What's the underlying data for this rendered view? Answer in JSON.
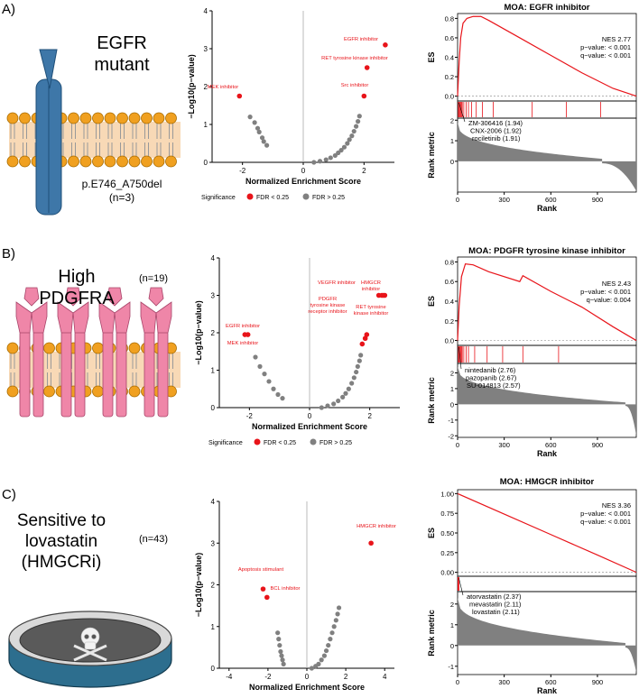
{
  "panels": [
    {
      "label": "A)",
      "caption_lines": [
        "EGFR",
        "mutant"
      ],
      "variant_line1": "p.E746_A750del",
      "variant_line2": "(n=3)",
      "n_label": ""
    },
    {
      "label": "B)",
      "caption_lines": [
        "High",
        "PDGFRA"
      ],
      "variant_line1": "",
      "variant_line2": "",
      "n_label": "(n=19)"
    },
    {
      "label": "C)",
      "caption_lines": [
        "Sensitive to",
        "lovastatin",
        "(HMGCRi)"
      ],
      "variant_line1": "",
      "variant_line2": "",
      "n_label": "(n=43)"
    }
  ],
  "volcano_common": {
    "xlabel": "Normalized Enrichment Score",
    "ylabel": "−Log10(p−value)",
    "legend_title": "Significance",
    "legend_sig": "FDR < 0.25",
    "legend_nonsig": "FDR > 0.25",
    "colors": {
      "sig": "#e8141a",
      "nonsig": "#808080"
    }
  },
  "gsea_common": {
    "es_label": "ES",
    "rank_metric_label": "Rank metric",
    "rank_label": "Rank",
    "colors": {
      "curve": "#e8141a",
      "bar": "#808080"
    }
  },
  "chart_data": [
    {
      "type": "scatter",
      "name": "volcano-A",
      "xlabel": "Normalized Enrichment Score",
      "ylabel": "−Log10(p−value)",
      "xlim": [
        -3,
        3
      ],
      "ylim": [
        0,
        4
      ],
      "xticks": [
        -2,
        0,
        2
      ],
      "yticks": [
        0,
        1,
        2,
        3,
        4
      ],
      "significant": [
        {
          "x": 2.7,
          "y": 3.1,
          "label": "EGFR inhibitor"
        },
        {
          "x": 2.1,
          "y": 2.5,
          "label": "RET tyrosine kinase inhibitor"
        },
        {
          "x": 2.0,
          "y": 1.75,
          "label": "Src inhibitor"
        },
        {
          "x": -2.1,
          "y": 1.75,
          "label": "MEK inhibitor"
        }
      ],
      "nonsignificant": [
        {
          "x": -1.75,
          "y": 1.2
        },
        {
          "x": -1.6,
          "y": 1.05
        },
        {
          "x": -1.5,
          "y": 0.9
        },
        {
          "x": -1.45,
          "y": 0.8
        },
        {
          "x": -1.35,
          "y": 0.65
        },
        {
          "x": -1.3,
          "y": 0.55
        },
        {
          "x": -1.2,
          "y": 0.45
        },
        {
          "x": 0.35,
          "y": 0.0
        },
        {
          "x": 0.55,
          "y": 0.03
        },
        {
          "x": 0.75,
          "y": 0.07
        },
        {
          "x": 0.9,
          "y": 0.12
        },
        {
          "x": 1.05,
          "y": 0.18
        },
        {
          "x": 1.15,
          "y": 0.25
        },
        {
          "x": 1.25,
          "y": 0.32
        },
        {
          "x": 1.35,
          "y": 0.4
        },
        {
          "x": 1.45,
          "y": 0.5
        },
        {
          "x": 1.52,
          "y": 0.6
        },
        {
          "x": 1.6,
          "y": 0.7
        },
        {
          "x": 1.67,
          "y": 0.82
        },
        {
          "x": 1.74,
          "y": 0.95
        },
        {
          "x": 1.8,
          "y": 1.08
        },
        {
          "x": 1.85,
          "y": 1.22
        }
      ]
    },
    {
      "type": "line",
      "name": "gsea-A",
      "title": "MOA: EGFR inhibitor",
      "nes": "NES 2.77",
      "pvalue": "p−value: < 0.001",
      "qvalue": "q−value: < 0.001",
      "es_yticks": [
        "0.0",
        "0.2",
        "0.4",
        "0.6",
        "0.8"
      ],
      "es_ylim": [
        -0.05,
        0.85
      ],
      "xlim": [
        0,
        1150
      ],
      "xticks": [
        0,
        300,
        600,
        900
      ],
      "rank_yticks": [
        0,
        1,
        2
      ],
      "rank_ylim": [
        -1.5,
        2.1
      ],
      "es_curve": [
        [
          0,
          0.0
        ],
        [
          10,
          0.35
        ],
        [
          20,
          0.6
        ],
        [
          35,
          0.75
        ],
        [
          60,
          0.8
        ],
        [
          100,
          0.82
        ],
        [
          150,
          0.82
        ],
        [
          200,
          0.78
        ],
        [
          400,
          0.6
        ],
        [
          600,
          0.42
        ],
        [
          800,
          0.24
        ],
        [
          1000,
          0.08
        ],
        [
          1150,
          0.0
        ]
      ],
      "hits": [
        5,
        10,
        15,
        20,
        25,
        30,
        40,
        55,
        70,
        90,
        120,
        160,
        230,
        480,
        700,
        920
      ],
      "annotations": [
        "ZM-306416 (1.94)",
        "CNX-2006 (1.92)",
        "rociletinib (1.91)"
      ]
    },
    {
      "type": "scatter",
      "name": "volcano-B",
      "xlabel": "Normalized Enrichment Score",
      "ylabel": "−Log10(p−value)",
      "xlim": [
        -3,
        3
      ],
      "ylim": [
        0,
        4
      ],
      "xticks": [
        -2,
        0,
        2
      ],
      "yticks": [
        0,
        1,
        2,
        3,
        4
      ],
      "significant": [
        {
          "x": 2.5,
          "y": 3.0,
          "label": "HMGCR inhibitor"
        },
        {
          "x": 2.4,
          "y": 3.0,
          "label": "VEGFR inhibitor"
        },
        {
          "x": 2.3,
          "y": 3.0,
          "label": "PDGFR tyrosine kinase receptor inhibitor"
        },
        {
          "x": 2.45,
          "y": 3.0,
          "label": "RET tyrosine kinase inhibitor"
        },
        {
          "x": -2.05,
          "y": 1.95,
          "label": "EGFR inhibitor"
        },
        {
          "x": -2.15,
          "y": 1.95,
          "label": "MEK inhibitor"
        },
        {
          "x": 1.9,
          "y": 1.95
        },
        {
          "x": 1.85,
          "y": 1.85
        },
        {
          "x": 1.75,
          "y": 1.7
        }
      ],
      "nonsignificant": [
        {
          "x": -1.8,
          "y": 1.35
        },
        {
          "x": -1.65,
          "y": 1.1
        },
        {
          "x": -1.5,
          "y": 0.9
        },
        {
          "x": -1.35,
          "y": 0.7
        },
        {
          "x": -1.2,
          "y": 0.5
        },
        {
          "x": -1.05,
          "y": 0.35
        },
        {
          "x": -0.9,
          "y": 0.25
        },
        {
          "x": 0.4,
          "y": 0.0
        },
        {
          "x": 0.6,
          "y": 0.05
        },
        {
          "x": 0.8,
          "y": 0.1
        },
        {
          "x": 0.95,
          "y": 0.18
        },
        {
          "x": 1.1,
          "y": 0.28
        },
        {
          "x": 1.2,
          "y": 0.38
        },
        {
          "x": 1.3,
          "y": 0.5
        },
        {
          "x": 1.4,
          "y": 0.65
        },
        {
          "x": 1.48,
          "y": 0.8
        },
        {
          "x": 1.55,
          "y": 0.95
        },
        {
          "x": 1.6,
          "y": 1.1
        },
        {
          "x": 1.66,
          "y": 1.25
        },
        {
          "x": 1.7,
          "y": 1.4
        }
      ]
    },
    {
      "type": "line",
      "name": "gsea-B",
      "title": "MOA: PDGFR tyrosine kinase inhibitor",
      "nes": "NES 2.43",
      "pvalue": "p−value: < 0.001",
      "qvalue": "q−value: 0.004",
      "es_yticks": [
        "0.0",
        "0.2",
        "0.4",
        "0.6",
        "0.8"
      ],
      "es_ylim": [
        -0.05,
        0.85
      ],
      "xlim": [
        0,
        1150
      ],
      "xticks": [
        0,
        300,
        600,
        900
      ],
      "rank_yticks": [
        -2,
        -1,
        0,
        1,
        2
      ],
      "rank_ylim": [
        -2.1,
        2.6
      ],
      "es_curve": [
        [
          0,
          0.0
        ],
        [
          10,
          0.35
        ],
        [
          25,
          0.65
        ],
        [
          50,
          0.78
        ],
        [
          100,
          0.77
        ],
        [
          200,
          0.7
        ],
        [
          400,
          0.6
        ],
        [
          420,
          0.66
        ],
        [
          600,
          0.5
        ],
        [
          800,
          0.34
        ],
        [
          1000,
          0.14
        ],
        [
          1150,
          0.0
        ]
      ],
      "hits": [
        5,
        10,
        15,
        20,
        25,
        30,
        40,
        55,
        70,
        110,
        190,
        290,
        420,
        650
      ],
      "annotations": [
        "nintedanib (2.76)",
        "pazopanib (2.67)",
        "SU-014813 (2.57)"
      ]
    },
    {
      "type": "scatter",
      "name": "volcano-C",
      "xlabel": "Normalized Enrichment Score",
      "ylabel": "−Log10(p−value)",
      "xlim": [
        -4.5,
        4.5
      ],
      "ylim": [
        0,
        4
      ],
      "xticks": [
        -4,
        -2,
        0,
        2,
        4
      ],
      "yticks": [
        0,
        1,
        2,
        3,
        4
      ],
      "significant": [
        {
          "x": 3.3,
          "y": 3.0,
          "label": "HMGCR inhibitor"
        },
        {
          "x": -2.25,
          "y": 1.9,
          "label": "Apoptosis stimulant"
        },
        {
          "x": -2.05,
          "y": 1.7,
          "label": "BCL inhibitor"
        }
      ],
      "nonsignificant": [
        {
          "x": -1.5,
          "y": 0.85
        },
        {
          "x": -1.45,
          "y": 0.7
        },
        {
          "x": -1.4,
          "y": 0.55
        },
        {
          "x": -1.35,
          "y": 0.4
        },
        {
          "x": -1.3,
          "y": 0.3
        },
        {
          "x": -1.25,
          "y": 0.2
        },
        {
          "x": -1.2,
          "y": 0.1
        },
        {
          "x": 0.25,
          "y": 0.0
        },
        {
          "x": 0.45,
          "y": 0.05
        },
        {
          "x": 0.6,
          "y": 0.1
        },
        {
          "x": 0.75,
          "y": 0.2
        },
        {
          "x": 0.9,
          "y": 0.3
        },
        {
          "x": 1.0,
          "y": 0.42
        },
        {
          "x": 1.1,
          "y": 0.55
        },
        {
          "x": 1.2,
          "y": 0.7
        },
        {
          "x": 1.3,
          "y": 0.85
        },
        {
          "x": 1.4,
          "y": 1.0
        },
        {
          "x": 1.5,
          "y": 1.15
        },
        {
          "x": 1.58,
          "y": 1.3
        },
        {
          "x": 1.65,
          "y": 1.45
        }
      ]
    },
    {
      "type": "line",
      "name": "gsea-C",
      "title": "MOA: HMGCR inhibitor",
      "nes": "NES 3.36",
      "pvalue": "p−value: < 0.001",
      "qvalue": "q−value: < 0.001",
      "es_yticks": [
        "0.00",
        "0.25",
        "0.50",
        "0.75",
        "1.00"
      ],
      "es_ylim": [
        -0.05,
        1.05
      ],
      "xlim": [
        0,
        1150
      ],
      "xticks": [
        0,
        300,
        600,
        900
      ],
      "rank_yticks": [
        -1,
        0,
        1,
        2
      ],
      "rank_ylim": [
        -1.4,
        2.6
      ],
      "es_curve": [
        [
          0,
          1.0
        ],
        [
          300,
          0.74
        ],
        [
          600,
          0.48
        ],
        [
          900,
          0.22
        ],
        [
          1150,
          0.0
        ]
      ],
      "hits": [
        2,
        5,
        9
      ],
      "annotations": [
        "atorvastatin (2.37)",
        "mevastatin (2.11)",
        "lovastatin (2.11)"
      ]
    }
  ]
}
